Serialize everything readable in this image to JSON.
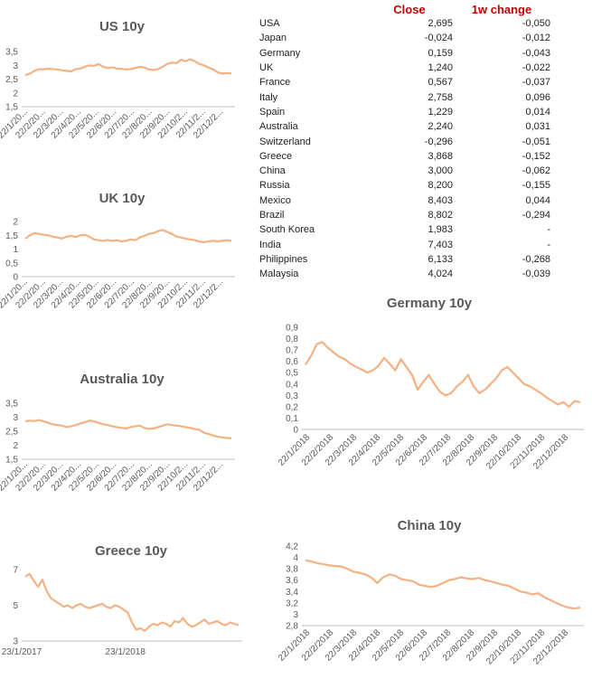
{
  "table": {
    "headers": {
      "close": "Close",
      "change": "1w change"
    },
    "rows": [
      {
        "country": "USA",
        "close": "2,695",
        "change": "-0,050"
      },
      {
        "country": "Japan",
        "close": "-0,024",
        "change": "-0,012"
      },
      {
        "country": "Germany",
        "close": "0,159",
        "change": "-0,043"
      },
      {
        "country": "UK",
        "close": "1,240",
        "change": "-0,022"
      },
      {
        "country": "France",
        "close": "0,567",
        "change": "-0,037"
      },
      {
        "country": "Italy",
        "close": "2,758",
        "change": "0,096"
      },
      {
        "country": "Spain",
        "close": "1,229",
        "change": "0,014"
      },
      {
        "country": "Australia",
        "close": "2,240",
        "change": "0,031"
      },
      {
        "country": "Switzerland",
        "close": "-0,296",
        "change": "-0,051"
      },
      {
        "country": "Greece",
        "close": "3,868",
        "change": "-0,152"
      },
      {
        "country": "China",
        "close": "3,000",
        "change": "-0,062"
      },
      {
        "country": "Russia",
        "close": "8,200",
        "change": "-0,155"
      },
      {
        "country": "Mexico",
        "close": "8,403",
        "change": "0,044"
      },
      {
        "country": "Brazil",
        "close": "8,802",
        "change": "-0,294"
      },
      {
        "country": "South Korea",
        "close": "1,983",
        "change": "-"
      },
      {
        "country": "India",
        "close": "7,403",
        "change": "-"
      },
      {
        "country": "Philippines",
        "close": "6,133",
        "change": "-0,268"
      },
      {
        "country": "Malaysia",
        "close": "4,024",
        "change": "-0,039"
      }
    ]
  },
  "colors": {
    "series": "#f4b183",
    "header": "#c00000",
    "title": "#595959",
    "axis": "#bfbfbf"
  },
  "chart_data": [
    {
      "id": "us",
      "type": "line",
      "title": "US 10y",
      "ylim": [
        1.5,
        3.5
      ],
      "yticks": [
        "1,5",
        "2",
        "2,5",
        "3",
        "3,5"
      ],
      "xticks": [
        "22/1/20...",
        "22/2/20...",
        "22/3/20...",
        "22/4/20...",
        "22/5/20...",
        "22/6/20...",
        "22/7/20...",
        "22/8/20...",
        "22/9/20...",
        "22/10/2...",
        "22/11/2...",
        "22/12/2..."
      ],
      "series": [
        {
          "values": [
            2.64,
            2.7,
            2.8,
            2.86,
            2.85,
            2.88,
            2.86,
            2.85,
            2.82,
            2.8,
            2.78,
            2.86,
            2.88,
            2.95,
            3.0,
            2.98,
            3.05,
            2.95,
            2.9,
            2.93,
            2.88,
            2.87,
            2.85,
            2.86,
            2.9,
            2.95,
            2.92,
            2.85,
            2.83,
            2.86,
            2.95,
            3.05,
            3.1,
            3.08,
            3.2,
            3.15,
            3.22,
            3.15,
            3.05,
            3.0,
            2.92,
            2.85,
            2.75,
            2.7,
            2.72,
            2.7
          ]
        }
      ]
    },
    {
      "id": "uk",
      "type": "line",
      "title": "UK 10y",
      "ylim": [
        0,
        2
      ],
      "yticks": [
        "0",
        "0,5",
        "1",
        "1,5",
        "2"
      ],
      "xticks": [
        "22/1/20...",
        "22/2/20...",
        "22/3/20...",
        "22/4/20...",
        "22/5/20...",
        "22/6/20...",
        "22/7/20...",
        "22/8/20...",
        "22/9/20...",
        "22/10/2...",
        "22/11/2...",
        "22/12/2..."
      ],
      "series": [
        {
          "values": [
            1.38,
            1.5,
            1.58,
            1.55,
            1.52,
            1.5,
            1.45,
            1.42,
            1.38,
            1.45,
            1.48,
            1.44,
            1.5,
            1.52,
            1.45,
            1.35,
            1.32,
            1.3,
            1.33,
            1.3,
            1.32,
            1.28,
            1.3,
            1.35,
            1.32,
            1.42,
            1.48,
            1.55,
            1.58,
            1.65,
            1.7,
            1.62,
            1.55,
            1.45,
            1.42,
            1.38,
            1.35,
            1.32,
            1.28,
            1.25,
            1.28,
            1.3,
            1.28,
            1.3,
            1.32,
            1.3
          ]
        }
      ]
    },
    {
      "id": "australia",
      "type": "line",
      "title": "Australia 10y",
      "ylim": [
        1.5,
        3.5
      ],
      "yticks": [
        "1,5",
        "2",
        "2,5",
        "3",
        "3,5"
      ],
      "xticks": [
        "22/1/20...",
        "22/2/20...",
        "22/3/20...",
        "22/4/20...",
        "22/5/20...",
        "22/6/20...",
        "22/7/20...",
        "22/8/20...",
        "22/9/20...",
        "22/10/2...",
        "22/11/2...",
        "22/12/2..."
      ],
      "series": [
        {
          "values": [
            2.85,
            2.88,
            2.86,
            2.9,
            2.85,
            2.8,
            2.75,
            2.72,
            2.7,
            2.65,
            2.68,
            2.72,
            2.78,
            2.82,
            2.88,
            2.85,
            2.8,
            2.75,
            2.72,
            2.68,
            2.65,
            2.62,
            2.6,
            2.65,
            2.68,
            2.7,
            2.62,
            2.58,
            2.6,
            2.65,
            2.7,
            2.75,
            2.72,
            2.7,
            2.68,
            2.65,
            2.62,
            2.58,
            2.55,
            2.45,
            2.4,
            2.35,
            2.3,
            2.28,
            2.26,
            2.25
          ]
        }
      ]
    },
    {
      "id": "greece",
      "type": "line",
      "title": "Greece 10y",
      "ylim": [
        3,
        8
      ],
      "yticks": [
        "3",
        "5",
        "7"
      ],
      "xticks": [
        "23/1/2017",
        "23/1/2018"
      ],
      "series": [
        {
          "values": [
            7.5,
            7.7,
            7.2,
            6.8,
            7.3,
            6.5,
            6.0,
            5.8,
            5.6,
            5.4,
            5.5,
            5.3,
            5.5,
            5.6,
            5.4,
            5.3,
            5.4,
            5.5,
            5.6,
            5.4,
            5.3,
            5.5,
            5.4,
            5.2,
            5.0,
            4.3,
            3.8,
            3.9,
            3.7,
            4.0,
            4.2,
            4.1,
            4.3,
            4.2,
            4.0,
            4.4,
            4.3,
            4.6,
            4.2,
            4.0,
            4.1,
            4.3,
            4.5,
            4.2,
            4.3,
            4.4,
            4.2,
            4.1,
            4.3,
            4.2,
            4.1
          ]
        }
      ]
    },
    {
      "id": "germany",
      "type": "line",
      "title": "Germany 10y",
      "ylim": [
        0,
        0.9
      ],
      "yticks": [
        "0",
        "0,1",
        "0,2",
        "0,3",
        "0,4",
        "0,5",
        "0,6",
        "0,7",
        "0,8",
        "0,9"
      ],
      "xticks": [
        "22/1/2018",
        "22/2/2018",
        "22/3/2018",
        "22/4/2018",
        "22/5/2018",
        "22/6/2018",
        "22/7/2018",
        "22/8/2018",
        "22/9/2018",
        "22/10/2018",
        "22/11/2018",
        "22/12/2018"
      ],
      "series": [
        {
          "values": [
            0.57,
            0.65,
            0.75,
            0.77,
            0.72,
            0.68,
            0.64,
            0.62,
            0.58,
            0.55,
            0.53,
            0.5,
            0.52,
            0.56,
            0.63,
            0.58,
            0.52,
            0.62,
            0.55,
            0.48,
            0.35,
            0.42,
            0.48,
            0.4,
            0.33,
            0.3,
            0.32,
            0.38,
            0.42,
            0.48,
            0.38,
            0.32,
            0.35,
            0.4,
            0.45,
            0.52,
            0.55,
            0.5,
            0.45,
            0.4,
            0.38,
            0.35,
            0.32,
            0.28,
            0.25,
            0.22,
            0.24,
            0.2,
            0.25,
            0.24
          ]
        }
      ]
    },
    {
      "id": "china",
      "type": "line",
      "title": "China 10y",
      "ylim": [
        2.8,
        4.2
      ],
      "yticks": [
        "2,8",
        "3",
        "3,2",
        "3,4",
        "3,6",
        "3,8",
        "4",
        "4,2"
      ],
      "xticks": [
        "22/1/2018",
        "22/2/2018",
        "22/3/2018",
        "22/4/2018",
        "22/5/2018",
        "22/6/2018",
        "22/7/2018",
        "22/8/2018",
        "22/9/2018",
        "22/10/2018",
        "22/11/2018",
        "22/12/2018"
      ],
      "series": [
        {
          "values": [
            3.95,
            3.93,
            3.9,
            3.88,
            3.86,
            3.85,
            3.84,
            3.8,
            3.75,
            3.73,
            3.7,
            3.65,
            3.55,
            3.65,
            3.7,
            3.68,
            3.62,
            3.6,
            3.58,
            3.52,
            3.5,
            3.48,
            3.5,
            3.55,
            3.6,
            3.62,
            3.65,
            3.63,
            3.62,
            3.64,
            3.6,
            3.58,
            3.55,
            3.52,
            3.5,
            3.45,
            3.4,
            3.38,
            3.35,
            3.37,
            3.3,
            3.25,
            3.2,
            3.15,
            3.12,
            3.1,
            3.12
          ]
        }
      ]
    }
  ]
}
